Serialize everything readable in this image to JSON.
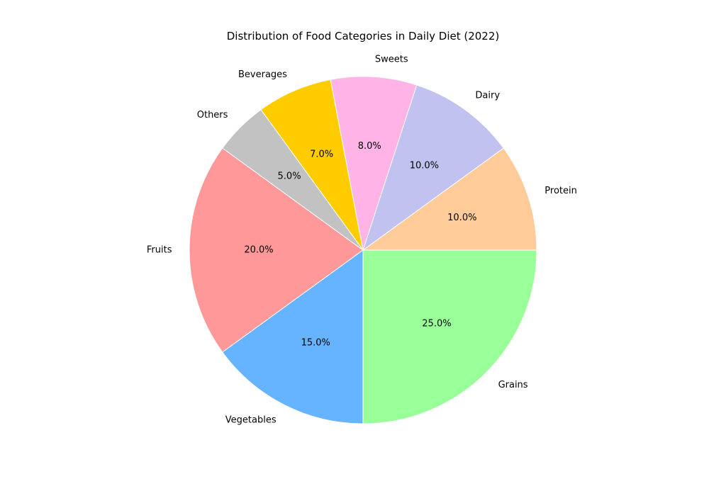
{
  "chart_data": {
    "type": "pie",
    "title": "Distribution of Food Categories in Daily Diet (2022)",
    "categories": [
      "Fruits",
      "Vegetables",
      "Grains",
      "Protein",
      "Dairy",
      "Sweets",
      "Beverages",
      "Others"
    ],
    "values": [
      20.0,
      15.0,
      25.0,
      10.0,
      10.0,
      8.0,
      7.0,
      5.0
    ],
    "percent_labels": [
      "20.0%",
      "15.0%",
      "25.0%",
      "10.0%",
      "10.0%",
      "8.0%",
      "7.0%",
      "5.0%"
    ],
    "colors": [
      "#ff9999",
      "#66b3ff",
      "#99ff99",
      "#ffcc99",
      "#c2c2f0",
      "#ffb3e6",
      "#ffcc00",
      "#c2c2c2"
    ],
    "start_angle_deg": 144,
    "direction": "counterclockwise",
    "legend": "none"
  }
}
